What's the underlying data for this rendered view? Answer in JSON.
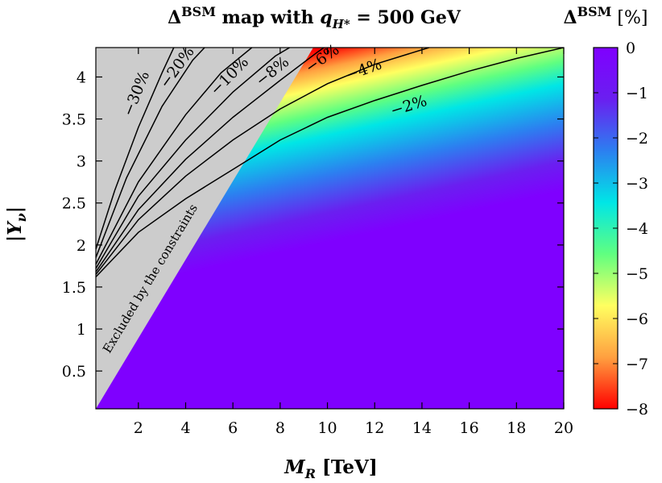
{
  "chart_data": {
    "type": "heatmap",
    "title_main": "Δ",
    "title_sup": "BSM",
    "title_rest": " map with ",
    "title_var": "q",
    "title_var_sub": "H*",
    "title_value": " = 500 GeV",
    "xlabel_main": "M",
    "xlabel_sub": "R",
    "xlabel_unit": " [TeV]",
    "ylabel_main": "|Y",
    "ylabel_sub": "ν",
    "ylabel_close": "|",
    "colorbar_label_main": "Δ",
    "colorbar_label_sup": "BSM",
    "colorbar_label_unit": " [%]",
    "xlim": [
      0.2,
      20
    ],
    "ylim": [
      0.05,
      4.35
    ],
    "x_ticks": [
      2,
      4,
      6,
      8,
      10,
      12,
      14,
      16,
      18,
      20
    ],
    "y_ticks": [
      0.5,
      1,
      1.5,
      2,
      2.5,
      3,
      3.5,
      4
    ],
    "y_tick_labels": [
      "0.5",
      "1",
      "1.5",
      "2",
      "2.5",
      "3",
      "3.5",
      "4"
    ],
    "colorbar_range": [
      -8,
      0
    ],
    "colorbar_ticks": [
      0,
      -1,
      -2,
      -3,
      -4,
      -5,
      -6,
      -7,
      -8
    ],
    "colorbar_tick_labels": [
      "0",
      "−1",
      "−2",
      "−3",
      "−4",
      "−5",
      "−6",
      "−7",
      "−8"
    ],
    "colorscale": [
      "#ff0000",
      "#ffa040",
      "#ffff60",
      "#60ff80",
      "#00e6e6",
      "#2c7ff0",
      "#6a1ff0",
      "#7f00ff"
    ],
    "excluded_region": {
      "label": "Excluded by the constraints",
      "boundary": [
        [
          0.2,
          0.05
        ],
        [
          9.4,
          4.35
        ]
      ],
      "color": "#cccccc"
    },
    "contours": [
      {
        "label": "−2%",
        "value": -2,
        "label_at": [
          13.5,
          3.6
        ],
        "points": [
          [
            0.2,
            1.62
          ],
          [
            2,
            2.15
          ],
          [
            4,
            2.55
          ],
          [
            6,
            2.9
          ],
          [
            8,
            3.25
          ],
          [
            10,
            3.52
          ],
          [
            12,
            3.72
          ],
          [
            14,
            3.9
          ],
          [
            16,
            4.07
          ],
          [
            18,
            4.22
          ],
          [
            20,
            4.35
          ]
        ]
      },
      {
        "label": "−4%",
        "value": -4,
        "label_at": [
          11.6,
          4.03
        ],
        "points": [
          [
            0.2,
            1.65
          ],
          [
            2,
            2.3
          ],
          [
            4,
            2.82
          ],
          [
            6,
            3.25
          ],
          [
            8,
            3.62
          ],
          [
            10,
            3.92
          ],
          [
            12,
            4.15
          ],
          [
            14.3,
            4.35
          ]
        ]
      },
      {
        "label": "−6%",
        "value": -6,
        "label_at": [
          9.9,
          4.17
        ],
        "points": [
          [
            0.2,
            1.68
          ],
          [
            2,
            2.42
          ],
          [
            4,
            3.02
          ],
          [
            6,
            3.52
          ],
          [
            8,
            3.96
          ],
          [
            9.6,
            4.3
          ],
          [
            9.85,
            4.35
          ]
        ]
      },
      {
        "label": "−8%",
        "value": -8,
        "label_at": [
          7.8,
          4.02
        ],
        "points": [
          [
            0.2,
            1.72
          ],
          [
            2,
            2.58
          ],
          [
            4,
            3.25
          ],
          [
            6,
            3.82
          ],
          [
            7.8,
            4.25
          ],
          [
            8.4,
            4.35
          ]
        ]
      },
      {
        "label": "−10%",
        "value": -10,
        "label_at": [
          6.0,
          3.97
        ],
        "points": [
          [
            0.2,
            1.77
          ],
          [
            2,
            2.75
          ],
          [
            4,
            3.55
          ],
          [
            5.5,
            4.05
          ],
          [
            6.8,
            4.35
          ]
        ]
      },
      {
        "label": "−20%",
        "value": -20,
        "label_at": [
          3.8,
          4.08
        ],
        "points": [
          [
            0.2,
            1.85
          ],
          [
            1.5,
            2.8
          ],
          [
            3,
            3.65
          ],
          [
            4.3,
            4.2
          ],
          [
            4.8,
            4.35
          ]
        ]
      },
      {
        "label": "−30%",
        "value": -30,
        "label_at": [
          2.1,
          3.78
        ],
        "points": [
          [
            0.2,
            1.95
          ],
          [
            1,
            2.65
          ],
          [
            2,
            3.4
          ],
          [
            3,
            4.05
          ],
          [
            3.5,
            4.35
          ]
        ]
      }
    ]
  }
}
